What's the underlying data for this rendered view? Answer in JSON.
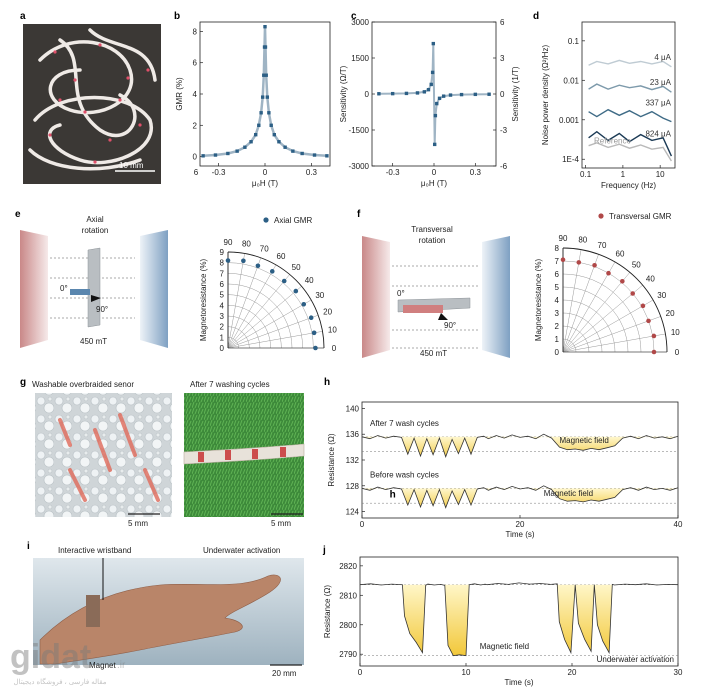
{
  "panels": {
    "a": {
      "letter": "a",
      "scale_label": "10 mm"
    },
    "b": {
      "letter": "b"
    },
    "c": {
      "letter": "c"
    },
    "d": {
      "letter": "d"
    },
    "e": {
      "letter": "e",
      "title_line1": "Axial",
      "title_line2": "rotation",
      "angle0": "0°",
      "angle90": "90°",
      "field": "450 mT"
    },
    "f": {
      "letter": "f",
      "title_line1": "Transversal",
      "title_line2": "rotation",
      "angle0": "0°",
      "angle90": "90°",
      "field": "450 mT"
    },
    "g": {
      "letter": "g",
      "left_title": "Washable overbraided senor",
      "right_title": "After 7 washing cycles",
      "left_scale": "5 mm",
      "right_scale": "5 mm"
    },
    "h": {
      "letter": "h",
      "after_label": "After 7 wash cycles",
      "before_label": "Before wash cycles",
      "field_label_top": "Magnetic field",
      "field_label_bottom": "Magnetic field",
      "inner_letter": "h"
    },
    "i": {
      "letter": "i",
      "left_title": "Interactive wristband",
      "right_title": "Underwater activation",
      "magnet_label": "Magnet",
      "scale": "20 mm"
    },
    "j": {
      "letter": "j",
      "field_label": "Magnetic field",
      "activation_label": "Underwater activation"
    }
  },
  "watermark": {
    "brand": "gidat",
    "domain": ".ir",
    "tagline": "مقاله فارسی ، فروشگاه دیجیتال"
  },
  "colors": {
    "navy": "#1f4e79",
    "marker": "#2c5f85",
    "red": "#b04848",
    "yellow": "#f5d14a",
    "blue_panel": "#6a8fb3",
    "red_panel": "#c97a7a"
  },
  "chart_data": [
    {
      "id": "b",
      "type": "scatter",
      "xlabel": "μ₀H (T)",
      "ylabel": "GMR (%)",
      "xticks": [
        "-0.3",
        "0",
        "0.3"
      ],
      "xtick_values": [
        -0.3,
        0,
        0.3
      ],
      "x_left_label": "6",
      "yticks": [
        "0",
        "2",
        "4",
        "6",
        "8"
      ],
      "ytick_values": [
        0,
        2,
        4,
        6,
        8
      ],
      "xlim": [
        -0.42,
        0.42
      ],
      "ylim": [
        -0.6,
        8.6
      ],
      "x": [
        -0.4,
        -0.32,
        -0.24,
        -0.18,
        -0.13,
        -0.09,
        -0.06,
        -0.04,
        -0.025,
        -0.015,
        -0.008,
        -0.003,
        0,
        0.003,
        0.008,
        0.015,
        0.025,
        0.04,
        0.06,
        0.09,
        0.13,
        0.18,
        0.24,
        0.32,
        0.4
      ],
      "y": [
        0.05,
        0.1,
        0.2,
        0.35,
        0.6,
        0.95,
        1.4,
        2.0,
        2.8,
        3.8,
        5.2,
        7.0,
        8.3,
        7.0,
        5.2,
        3.8,
        2.8,
        2.0,
        1.4,
        0.95,
        0.6,
        0.35,
        0.2,
        0.1,
        0.05
      ]
    },
    {
      "id": "c",
      "type": "scatter",
      "xlabel": "μ₀H (T)",
      "ylabel_left": "Sensitivity (Ω/T)",
      "ylabel_right": "Sensitivity (1/T)",
      "xticks": [
        "-0.3",
        "0",
        "0.3"
      ],
      "xtick_values": [
        -0.3,
        0,
        0.3
      ],
      "yticks_left": [
        "-3000",
        "-1500",
        "0",
        "1500",
        "3000"
      ],
      "ytick_left_values": [
        -3000,
        -1500,
        0,
        1500,
        3000
      ],
      "yticks_right": [
        "-6",
        "-3",
        "0",
        "3",
        "6"
      ],
      "xlim": [
        -0.45,
        0.45
      ],
      "ylim": [
        -3000,
        3000
      ],
      "x": [
        -0.4,
        -0.3,
        -0.2,
        -0.12,
        -0.07,
        -0.04,
        -0.02,
        -0.01,
        -0.005,
        0.005,
        0.01,
        0.02,
        0.04,
        0.07,
        0.12,
        0.2,
        0.3,
        0.4
      ],
      "y": [
        10,
        15,
        25,
        45,
        90,
        180,
        400,
        900,
        2100,
        -2100,
        -900,
        -400,
        -180,
        -90,
        -45,
        -25,
        -15,
        -10
      ]
    },
    {
      "id": "d",
      "type": "line",
      "log_x": true,
      "log_y": true,
      "xlabel": "Frequency (Hz)",
      "ylabel": "Noise power density (Ω²/Hz)",
      "xticks": [
        "0.1",
        "1",
        "10"
      ],
      "xtick_values": [
        0.1,
        1,
        10
      ],
      "yticks": [
        "1E-4",
        "0.001",
        "0.01",
        "0.1"
      ],
      "ytick_values": [
        0.0001,
        0.001,
        0.01,
        0.1
      ],
      "xlim": [
        0.08,
        25
      ],
      "ylim": [
        6e-05,
        0.3
      ],
      "series": [
        {
          "name": "4 μA",
          "color": "#bfcbd3",
          "x": [
            0.12,
            0.2,
            0.4,
            0.8,
            1.5,
            3,
            6,
            12,
            20
          ],
          "y": [
            0.024,
            0.03,
            0.026,
            0.032,
            0.027,
            0.03,
            0.026,
            0.03,
            0.022
          ]
        },
        {
          "name": "23 μA",
          "color": "#7d9aab",
          "x": [
            0.12,
            0.2,
            0.4,
            0.8,
            1.5,
            3,
            6,
            12,
            20
          ],
          "y": [
            0.006,
            0.008,
            0.006,
            0.0075,
            0.0065,
            0.0072,
            0.0058,
            0.007,
            0.005
          ]
        },
        {
          "name": "337 μA",
          "color": "#3f6b86",
          "x": [
            0.12,
            0.2,
            0.4,
            0.8,
            1.5,
            3,
            6,
            12,
            20
          ],
          "y": [
            0.0016,
            0.0012,
            0.0018,
            0.0013,
            0.0017,
            0.0012,
            0.0016,
            0.0011,
            0.0009
          ]
        },
        {
          "name": "824 μA",
          "color": "#1b3a55",
          "x": [
            0.12,
            0.2,
            0.4,
            0.8,
            1.5,
            3,
            6,
            12,
            20
          ],
          "y": [
            0.00035,
            0.0005,
            0.0003,
            0.00045,
            0.00028,
            0.00042,
            0.0003,
            0.00035,
            0.00012
          ]
        },
        {
          "name": "Reference",
          "color": "#b9b9b9",
          "x": [
            0.12,
            0.2,
            0.4,
            0.8,
            1.5,
            3,
            6,
            12,
            20
          ],
          "y": [
            0.00022,
            0.00026,
            0.0002,
            0.00024,
            0.00019,
            0.00023,
            0.00018,
            0.0002,
            9e-05
          ]
        }
      ]
    },
    {
      "id": "e",
      "type": "scatter",
      "polar": true,
      "legend": "Axial GMR",
      "ylabel": "Magnetoresistance (%)",
      "angle_ticks": [
        "0",
        "10",
        "20",
        "30",
        "40",
        "50",
        "60",
        "70",
        "80",
        "90"
      ],
      "radial_ticks": [
        "0",
        "1",
        "2",
        "3",
        "4",
        "5",
        "6",
        "7",
        "8",
        "9"
      ],
      "rmax": 9,
      "angles": [
        0,
        10,
        20,
        30,
        40,
        50,
        60,
        70,
        80,
        90
      ],
      "values": [
        8.2,
        8.2,
        8.3,
        8.2,
        8.3,
        8.2,
        8.3,
        8.2,
        8.3,
        8.2
      ]
    },
    {
      "id": "f",
      "type": "scatter",
      "polar": true,
      "legend": "Transversal GMR",
      "ylabel": "Magnetoresistance (%)",
      "angle_ticks": [
        "0",
        "10",
        "20",
        "30",
        "40",
        "50",
        "60",
        "70",
        "80",
        "90"
      ],
      "radial_ticks": [
        "0",
        "1",
        "2",
        "3",
        "4",
        "5",
        "6",
        "7",
        "8"
      ],
      "rmax": 8,
      "angles": [
        0,
        10,
        20,
        30,
        40,
        50,
        60,
        70,
        80,
        90
      ],
      "values": [
        7.0,
        7.1,
        7.0,
        7.1,
        7.0,
        7.1,
        7.0,
        7.1,
        7.0,
        7.1
      ]
    },
    {
      "id": "h",
      "type": "line",
      "xlabel": "Time (s)",
      "ylabel": "Resistance (Ω)",
      "xticks": [
        "0",
        "20",
        "40"
      ],
      "xtick_values": [
        0,
        20,
        40
      ],
      "yticks": [
        "124",
        "128",
        "132",
        "136",
        "140"
      ],
      "ytick_values": [
        124,
        128,
        132,
        136,
        140
      ],
      "xlim": [
        0,
        40
      ],
      "ylim": [
        123,
        141
      ],
      "series": [
        {
          "name": "After 7 wash cycles",
          "x": [
            0,
            1,
            2,
            3,
            4,
            5,
            5.8,
            6.6,
            7.4,
            8.2,
            9,
            9.8,
            10.6,
            11.4,
            12.2,
            13,
            13.8,
            14.6,
            15.4,
            16,
            17,
            18,
            19,
            20,
            21,
            22,
            23,
            24,
            25,
            26,
            27,
            28,
            29,
            30,
            31,
            32,
            33,
            34,
            35,
            36,
            37,
            38,
            39,
            40
          ],
          "y": [
            135.6,
            135.3,
            135.8,
            135.4,
            135.7,
            135.5,
            132.9,
            135.4,
            132.6,
            135.3,
            132.8,
            135.4,
            132.5,
            135.2,
            133.0,
            135.4,
            132.9,
            135.5,
            135.7,
            135.3,
            135.8,
            135.4,
            135.9,
            135.5,
            135.7,
            135.3,
            136.0,
            135.4,
            134.0,
            133.6,
            133.7,
            133.5,
            133.8,
            133.6,
            133.9,
            134.2,
            135.4,
            135.7,
            135.3,
            135.8,
            135.4,
            135.6,
            135.3,
            135.7
          ]
        },
        {
          "name": "Before wash cycles",
          "x": [
            0,
            1,
            2,
            3,
            4,
            5,
            5.8,
            6.6,
            7.4,
            8.2,
            9,
            9.8,
            10.6,
            11.4,
            12.2,
            13,
            13.8,
            14.6,
            15.4,
            16,
            17,
            18,
            19,
            20,
            21,
            22,
            23,
            24,
            25,
            26,
            27,
            28,
            29,
            30,
            31,
            32,
            33,
            34,
            35,
            36,
            37,
            38,
            39,
            40
          ],
          "y": [
            127.6,
            127.3,
            127.8,
            127.4,
            127.7,
            127.5,
            125.0,
            127.4,
            124.7,
            127.3,
            124.9,
            127.4,
            124.6,
            127.2,
            125.1,
            127.4,
            125.0,
            127.5,
            127.7,
            127.3,
            127.8,
            127.4,
            127.9,
            127.5,
            127.7,
            127.3,
            128.0,
            127.4,
            126.0,
            125.6,
            125.7,
            125.5,
            125.8,
            125.6,
            125.9,
            126.2,
            127.4,
            127.7,
            127.3,
            127.8,
            127.4,
            127.6,
            127.3,
            127.7
          ]
        }
      ]
    },
    {
      "id": "j",
      "type": "line",
      "xlabel": "Time (s)",
      "ylabel": "Resistance (Ω)",
      "xticks": [
        "0",
        "10",
        "20",
        "30"
      ],
      "xtick_values": [
        0,
        10,
        20,
        30
      ],
      "yticks": [
        "2790",
        "2800",
        "2810",
        "2820"
      ],
      "ytick_values": [
        2790,
        2800,
        2810,
        2820
      ],
      "xlim": [
        0,
        30
      ],
      "ylim": [
        2786,
        2823
      ],
      "series": [
        {
          "name": "",
          "x": [
            0,
            1,
            2,
            3,
            4,
            4.2,
            4.7,
            5.3,
            5.9,
            6.2,
            6.4,
            7,
            7.6,
            8,
            8.3,
            8.8,
            9.4,
            10,
            10.3,
            10.8,
            11.4,
            11.8,
            12,
            13,
            14,
            15,
            16,
            17,
            18,
            18.6,
            18.8,
            19.3,
            19.9,
            20.3,
            20.6,
            21.2,
            21.8,
            22.1,
            22.4,
            22.9,
            23.5,
            23.8,
            24,
            25,
            26,
            27,
            28,
            29,
            30
          ],
          "y": [
            2813.6,
            2813.9,
            2813.5,
            2813.8,
            2813.6,
            2803.0,
            2797.0,
            2794.0,
            2790.5,
            2813.4,
            2813.8,
            2813.5,
            2813.7,
            2813.4,
            2793.0,
            2789.5,
            2789.8,
            2789.5,
            2813.6,
            2813.9,
            2813.5,
            2813.8,
            2813.6,
            2814.0,
            2813.7,
            2814.2,
            2813.8,
            2814.0,
            2813.7,
            2813.9,
            2801.0,
            2795.0,
            2790.5,
            2813.6,
            2800.5,
            2795.0,
            2791.0,
            2813.6,
            2800.0,
            2794.5,
            2790.5,
            2813.7,
            2813.5,
            2813.8,
            2813.6,
            2813.9,
            2813.5,
            2813.7,
            2813.6
          ]
        }
      ]
    }
  ]
}
